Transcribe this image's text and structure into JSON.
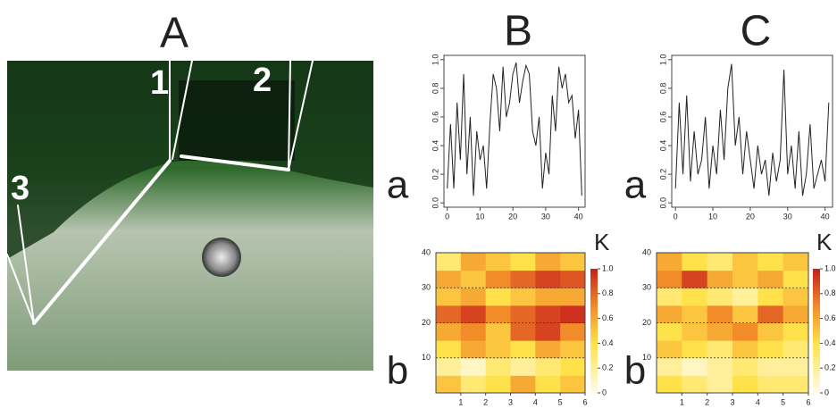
{
  "labels": {
    "A": "A",
    "B": "B",
    "C": "C",
    "a": [
      "a",
      "a"
    ],
    "b": [
      "b",
      "b"
    ]
  },
  "photo_labels": [
    "1",
    "2",
    "3"
  ],
  "chart_data": [
    {
      "type": "line",
      "color": "#222",
      "x": [
        0,
        1,
        2,
        3,
        4,
        5,
        6,
        7,
        8,
        9,
        10,
        11,
        12,
        13,
        14,
        15,
        16,
        17,
        18,
        19,
        20,
        21,
        22,
        23,
        24,
        25,
        26,
        27,
        28,
        29,
        30,
        31,
        32,
        33,
        34,
        35,
        36,
        37,
        38,
        39,
        40,
        41
      ],
      "values": [
        0.1,
        0.55,
        0.1,
        0.7,
        0.3,
        0.9,
        0.2,
        0.6,
        0.05,
        0.5,
        0.3,
        0.4,
        0.1,
        0.55,
        0.9,
        0.8,
        0.5,
        0.95,
        0.6,
        0.7,
        0.9,
        0.98,
        0.7,
        0.85,
        0.96,
        0.9,
        0.5,
        0.4,
        0.6,
        0.1,
        0.35,
        0.2,
        0.75,
        0.5,
        0.95,
        0.8,
        0.9,
        0.7,
        0.75,
        0.45,
        0.65,
        0.05
      ],
      "xlim": [
        -1,
        42
      ],
      "ylim": [
        -0.03,
        1.03
      ],
      "xticks": [
        0,
        10,
        20,
        30,
        40
      ],
      "yticks": [
        {
          "value": 0,
          "label": "0.0"
        },
        0.2,
        0.4,
        0.6,
        0.8,
        {
          "value": 1,
          "label": "1.0"
        }
      ]
    },
    {
      "type": "heatmap",
      "x_bins": [
        0,
        1,
        2,
        3,
        4,
        5,
        6
      ],
      "y_bins": [
        0,
        5,
        10,
        15,
        20,
        25,
        30,
        35,
        40
      ],
      "values": [
        [
          0.5,
          0.3,
          0.4,
          0.6,
          0.4,
          0.5
        ],
        [
          0.2,
          0.1,
          0.3,
          0.2,
          0.3,
          0.4
        ],
        [
          0.4,
          0.6,
          0.5,
          0.4,
          0.6,
          0.5
        ],
        [
          0.6,
          0.7,
          0.5,
          0.8,
          0.9,
          0.7
        ],
        [
          0.8,
          0.9,
          0.7,
          0.8,
          0.9,
          0.95
        ],
        [
          0.5,
          0.6,
          0.4,
          0.5,
          0.6,
          0.6
        ],
        [
          0.6,
          0.5,
          0.7,
          0.8,
          0.9,
          0.85
        ],
        [
          0.3,
          0.6,
          0.5,
          0.4,
          0.6,
          0.5
        ]
      ],
      "xlim": [
        0,
        6
      ],
      "ylim": [
        0,
        40
      ],
      "xticks": [
        1,
        2,
        3,
        4,
        5,
        6
      ],
      "yticks": [
        10,
        20,
        30,
        40
      ],
      "grid": true,
      "colorbar_label": "K",
      "clim": [
        0,
        1
      ],
      "cticks": [
        0,
        0.2,
        0.4,
        0.6,
        0.8,
        {
          "value": 1,
          "label": "1.0"
        }
      ]
    },
    {
      "type": "line",
      "color": "#222",
      "x": [
        0,
        1,
        2,
        3,
        4,
        5,
        6,
        7,
        8,
        9,
        10,
        11,
        12,
        13,
        14,
        15,
        16,
        17,
        18,
        19,
        20,
        21,
        22,
        23,
        24,
        25,
        26,
        27,
        28,
        29,
        30,
        31,
        32,
        33,
        34,
        35,
        36,
        37,
        38,
        39,
        40,
        41
      ],
      "values": [
        0.1,
        0.7,
        0.2,
        0.75,
        0.15,
        0.5,
        0.2,
        0.3,
        0.6,
        0.1,
        0.4,
        0.2,
        0.65,
        0.3,
        0.8,
        0.97,
        0.4,
        0.6,
        0.2,
        0.5,
        0.3,
        0.1,
        0.4,
        0.2,
        0.3,
        0.05,
        0.35,
        0.15,
        0.3,
        0.93,
        0.2,
        0.4,
        0.1,
        0.5,
        0.05,
        0.2,
        0.55,
        0.1,
        0.2,
        0.3,
        0.15,
        0.7
      ],
      "xlim": [
        -1,
        42
      ],
      "ylim": [
        -0.03,
        1.03
      ],
      "xticks": [
        0,
        10,
        20,
        30,
        40
      ],
      "yticks": [
        {
          "value": 0,
          "label": "0.0"
        },
        0.2,
        0.4,
        0.6,
        0.8,
        {
          "value": 1,
          "label": "1.0"
        }
      ]
    },
    {
      "type": "heatmap",
      "x_bins": [
        0,
        1,
        2,
        3,
        4,
        5,
        6
      ],
      "y_bins": [
        0,
        5,
        10,
        15,
        20,
        25,
        30,
        35,
        40
      ],
      "values": [
        [
          0.4,
          0.3,
          0.2,
          0.4,
          0.3,
          0.3
        ],
        [
          0.2,
          0.1,
          0.2,
          0.3,
          0.2,
          0.2
        ],
        [
          0.5,
          0.4,
          0.3,
          0.5,
          0.4,
          0.3
        ],
        [
          0.4,
          0.5,
          0.6,
          0.7,
          0.5,
          0.4
        ],
        [
          0.6,
          0.5,
          0.7,
          0.5,
          0.8,
          0.6
        ],
        [
          0.3,
          0.4,
          0.3,
          0.2,
          0.4,
          0.5
        ],
        [
          0.7,
          0.9,
          0.6,
          0.5,
          0.6,
          0.4
        ],
        [
          0.6,
          0.4,
          0.3,
          0.5,
          0.4,
          0.5
        ]
      ],
      "xlim": [
        0,
        6
      ],
      "ylim": [
        0,
        40
      ],
      "xticks": [
        1,
        2,
        3,
        4,
        5,
        6
      ],
      "yticks": [
        10,
        20,
        30,
        40
      ],
      "grid": true,
      "colorbar_label": "K",
      "clim": [
        0,
        1
      ],
      "cticks": [
        0,
        0.2,
        0.4,
        0.6,
        0.8,
        {
          "value": 1,
          "label": "1.0"
        }
      ]
    }
  ]
}
